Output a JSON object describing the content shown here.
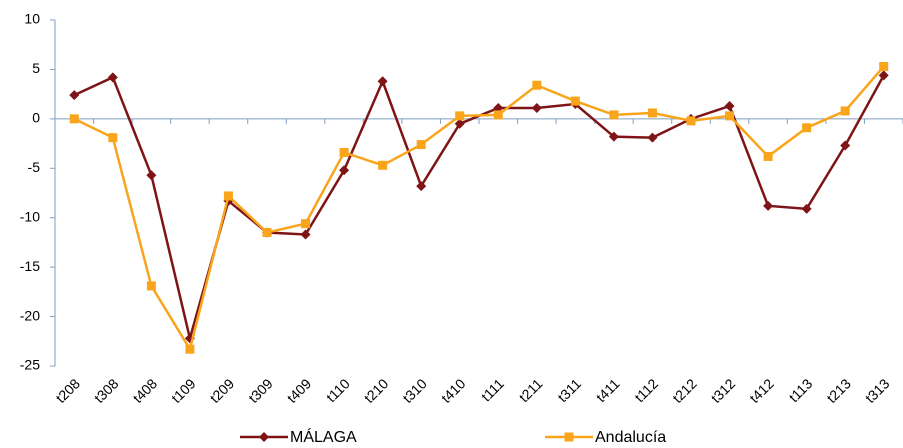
{
  "chart_data": {
    "type": "line",
    "categories": [
      "t208",
      "t308",
      "t408",
      "t109",
      "t209",
      "t309",
      "t409",
      "t110",
      "t210",
      "t310",
      "t410",
      "t111",
      "t211",
      "t311",
      "t411",
      "t112",
      "t212",
      "t312",
      "t412",
      "t113",
      "t213",
      "t313"
    ],
    "series": [
      {
        "name": "MÁLAGA",
        "color": "#7f1416",
        "marker": "diamond",
        "values": [
          2.4,
          4.2,
          -5.7,
          -22.2,
          -8.3,
          -11.5,
          -11.7,
          -5.2,
          3.8,
          -6.8,
          -0.5,
          1.1,
          1.1,
          1.5,
          -1.8,
          -1.9,
          0,
          1.3,
          -8.8,
          -9.1,
          -2.7,
          4.4
        ]
      },
      {
        "name": "Andalucía",
        "color": "#f9a51b",
        "marker": "square",
        "values": [
          0,
          -1.9,
          -16.9,
          -23.3,
          -7.8,
          -11.5,
          -10.6,
          -3.4,
          -4.7,
          -2.6,
          0.3,
          0.4,
          3.4,
          1.8,
          0.4,
          0.6,
          -0.2,
          0.3,
          -3.8,
          -0.9,
          0.8,
          5.3
        ]
      }
    ],
    "ylim": [
      -25,
      10
    ],
    "yticks": [
      -25,
      -20,
      -15,
      -10,
      -5,
      0,
      5,
      10
    ],
    "legend": "bottom"
  }
}
